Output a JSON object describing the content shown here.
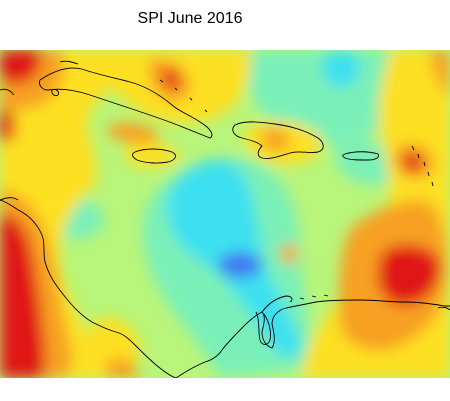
{
  "map": {
    "title": "SPI  June 2016",
    "colors": {
      "very_dry": "#e01515",
      "dry": "#f7a020",
      "slightly_dry": "#fde020",
      "near_normal": "#b8f57a",
      "slightly_wet": "#7af0b8",
      "wet": "#3ee0f0",
      "very_wet": "#3f78f0",
      "coastline": "#000000"
    }
  }
}
